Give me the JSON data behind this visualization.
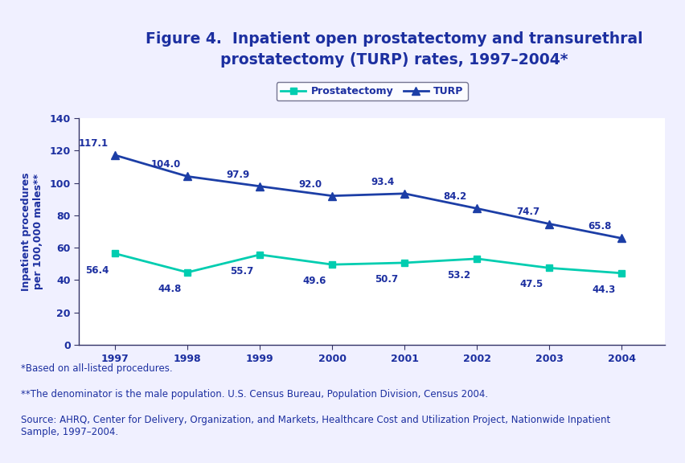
{
  "years": [
    1997,
    1998,
    1999,
    2000,
    2001,
    2002,
    2003,
    2004
  ],
  "prostatectomy": [
    56.4,
    44.8,
    55.7,
    49.6,
    50.7,
    53.2,
    47.5,
    44.3
  ],
  "turp": [
    117.1,
    104.0,
    97.9,
    92.0,
    93.4,
    84.2,
    74.7,
    65.8
  ],
  "prostatectomy_color": "#00CDB0",
  "turp_color": "#1C3EA6",
  "title_line1": "Figure 4.  Inpatient open prostatectomy and transurethral",
  "title_line2": "prostatectomy (TURP) rates, 1997–2004*",
  "ylabel": "Inpatient procedures\nper 100,000 males**",
  "ylim": [
    0,
    140
  ],
  "yticks": [
    0,
    20,
    40,
    60,
    80,
    100,
    120,
    140
  ],
  "legend_prostatectomy": "Prostatectomy",
  "legend_turp": "TURP",
  "footnote1": "*Based on all-listed procedures.",
  "footnote2": "**The denominator is the male population. U.S. Census Bureau, Population Division, Census 2004.",
  "footnote3": "Source: AHRQ, Center for Delivery, Organization, and Markets, Healthcare Cost and Utilization Project, Nationwide Inpatient\nSample, 1997–2004.",
  "background_color": "#F0F0FF",
  "plot_bg_color": "#FFFFFF",
  "header_bg_color": "#E8EEFF",
  "title_color": "#1C2FA0",
  "label_color": "#1C2FA0",
  "axis_color": "#333366",
  "footnote_color": "#1C2FA0",
  "border_color": "#1C3EA6",
  "title_fontsize": 13.5,
  "axis_label_fontsize": 9,
  "tick_label_fontsize": 9,
  "annotation_fontsize": 8.5,
  "footnote_fontsize": 8.5,
  "legend_fontsize": 9
}
